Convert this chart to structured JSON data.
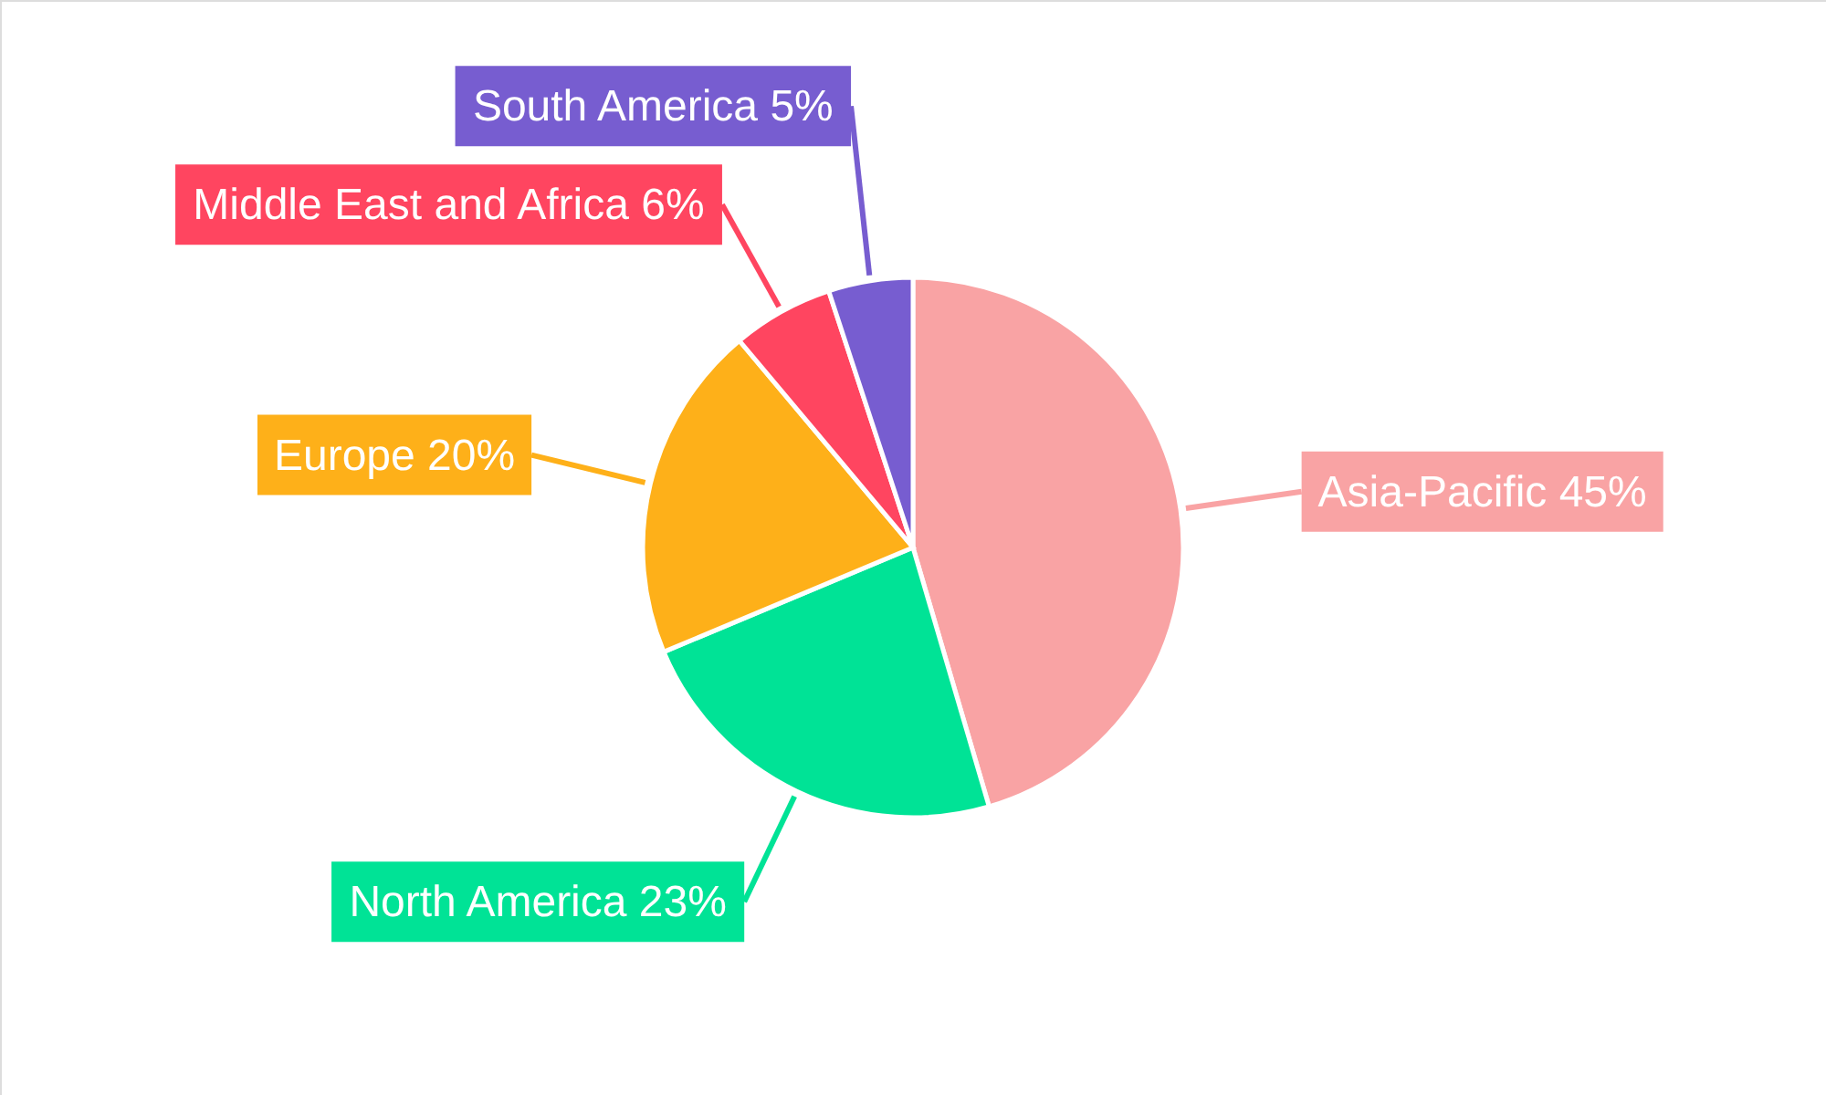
{
  "chart_data": {
    "type": "pie",
    "categories": [
      "Asia-Pacific",
      "North America",
      "Europe",
      "Middle East and Africa",
      "South America"
    ],
    "values": [
      45,
      23,
      20,
      6,
      5
    ],
    "value_labels": [
      "45%",
      "23%",
      "20%",
      "6%",
      "5%"
    ],
    "colors": [
      "#f9a3a4",
      "#00e396",
      "#feb019",
      "#ff4560",
      "#775dd0"
    ]
  }
}
